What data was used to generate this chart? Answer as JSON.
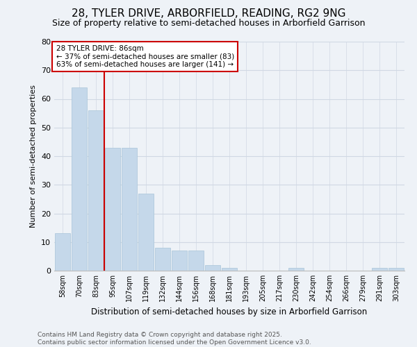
{
  "title": "28, TYLER DRIVE, ARBORFIELD, READING, RG2 9NG",
  "subtitle": "Size of property relative to semi-detached houses in Arborfield Garrison",
  "xlabel": "Distribution of semi-detached houses by size in Arborfield Garrison",
  "ylabel": "Number of semi-detached properties",
  "categories": [
    "58sqm",
    "70sqm",
    "83sqm",
    "95sqm",
    "107sqm",
    "119sqm",
    "132sqm",
    "144sqm",
    "156sqm",
    "168sqm",
    "181sqm",
    "193sqm",
    "205sqm",
    "217sqm",
    "230sqm",
    "242sqm",
    "254sqm",
    "266sqm",
    "279sqm",
    "291sqm",
    "303sqm"
  ],
  "values": [
    13,
    64,
    56,
    43,
    43,
    27,
    8,
    7,
    7,
    2,
    1,
    0,
    0,
    0,
    1,
    0,
    0,
    0,
    0,
    1,
    1
  ],
  "bar_color": "#c5d8ea",
  "bar_edge_color": "#a8c4d8",
  "vline_index": 2,
  "annotation_title": "28 TYLER DRIVE: 86sqm",
  "annotation_line1": "← 37% of semi-detached houses are smaller (83)",
  "annotation_line2": "63% of semi-detached houses are larger (141) →",
  "annotation_box_color": "#ffffff",
  "annotation_box_edge": "#cc0000",
  "vline_color": "#cc0000",
  "ylim": [
    0,
    80
  ],
  "yticks": [
    0,
    10,
    20,
    30,
    40,
    50,
    60,
    70,
    80
  ],
  "footer": "Contains HM Land Registry data © Crown copyright and database right 2025.\nContains public sector information licensed under the Open Government Licence v3.0.",
  "bg_color": "#eef2f7",
  "grid_color": "#d0d8e4",
  "title_fontsize": 11,
  "subtitle_fontsize": 9,
  "footer_fontsize": 6.5
}
